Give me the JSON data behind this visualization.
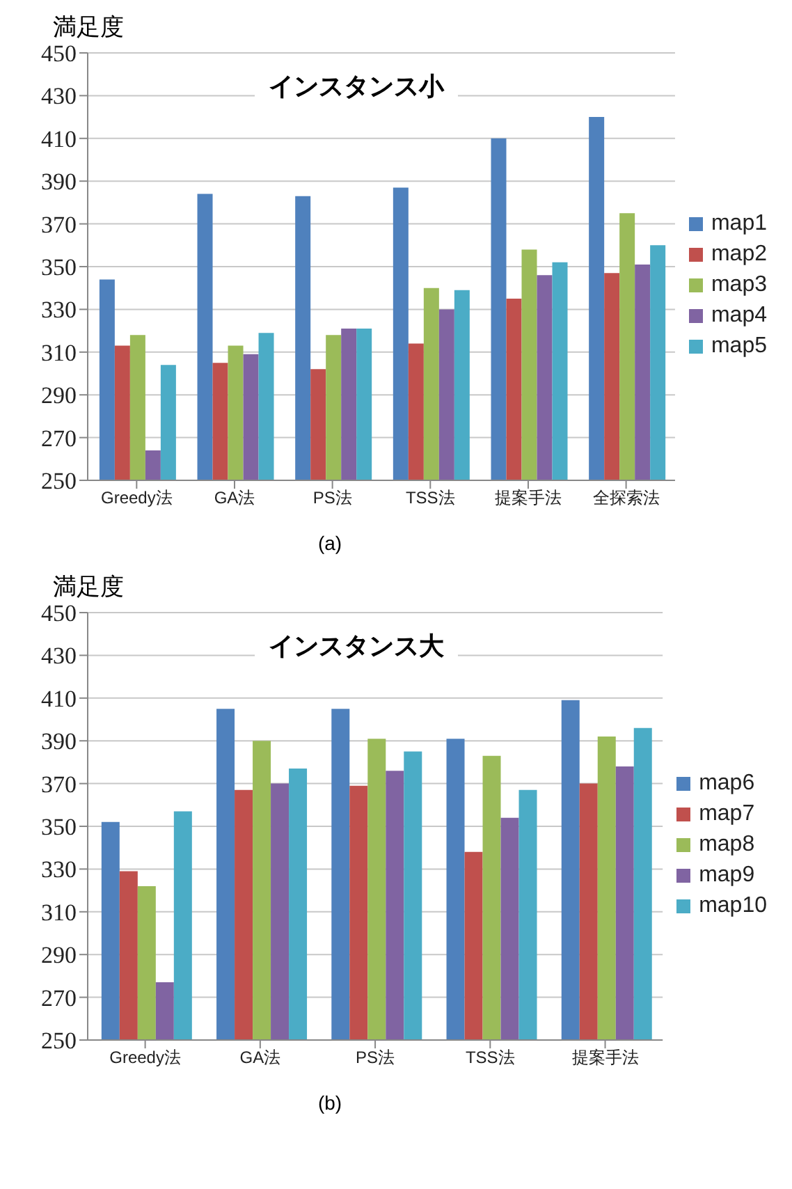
{
  "chart_data": [
    {
      "type": "bar",
      "title": "インスタンス小",
      "ylabel": "満足度",
      "categories": [
        "Greedy法",
        "GA法",
        "PS法",
        "TSS法",
        "提案手法",
        "全探索法"
      ],
      "series": [
        {
          "name": "map1",
          "color": "#4f81bd",
          "values": [
            344,
            384,
            383,
            387,
            410,
            420
          ]
        },
        {
          "name": "map2",
          "color": "#c0504d",
          "values": [
            313,
            305,
            302,
            314,
            335,
            347
          ]
        },
        {
          "name": "map3",
          "color": "#9bbb59",
          "values": [
            318,
            313,
            318,
            340,
            358,
            375
          ]
        },
        {
          "name": "map4",
          "color": "#8064a2",
          "values": [
            264,
            309,
            321,
            330,
            346,
            351
          ]
        },
        {
          "name": "map5",
          "color": "#4bacc6",
          "values": [
            304,
            319,
            321,
            339,
            352,
            360
          ]
        }
      ],
      "ylim": [
        250,
        450
      ],
      "yticks": [
        250,
        270,
        290,
        310,
        330,
        350,
        370,
        390,
        410,
        430,
        450
      ],
      "grid": "y",
      "legend": "right",
      "annotations": [
        "(a)"
      ]
    },
    {
      "type": "bar",
      "title": "インスタンス大",
      "ylabel": "満足度",
      "categories": [
        "Greedy法",
        "GA法",
        "PS法",
        "TSS法",
        "提案手法"
      ],
      "series": [
        {
          "name": "map6",
          "color": "#4f81bd",
          "values": [
            352,
            405,
            405,
            391,
            409
          ]
        },
        {
          "name": "map7",
          "color": "#c0504d",
          "values": [
            329,
            367,
            369,
            338,
            370
          ]
        },
        {
          "name": "map8",
          "color": "#9bbb59",
          "values": [
            322,
            390,
            391,
            383,
            392
          ]
        },
        {
          "name": "map9",
          "color": "#8064a2",
          "values": [
            277,
            370,
            376,
            354,
            378
          ]
        },
        {
          "name": "map10",
          "color": "#4bacc6",
          "values": [
            357,
            377,
            385,
            367,
            396
          ]
        }
      ],
      "ylim": [
        250,
        450
      ],
      "yticks": [
        250,
        270,
        290,
        310,
        330,
        350,
        370,
        390,
        410,
        430,
        450
      ],
      "grid": "y",
      "legend": "right",
      "annotations": [
        "(b)"
      ]
    }
  ]
}
